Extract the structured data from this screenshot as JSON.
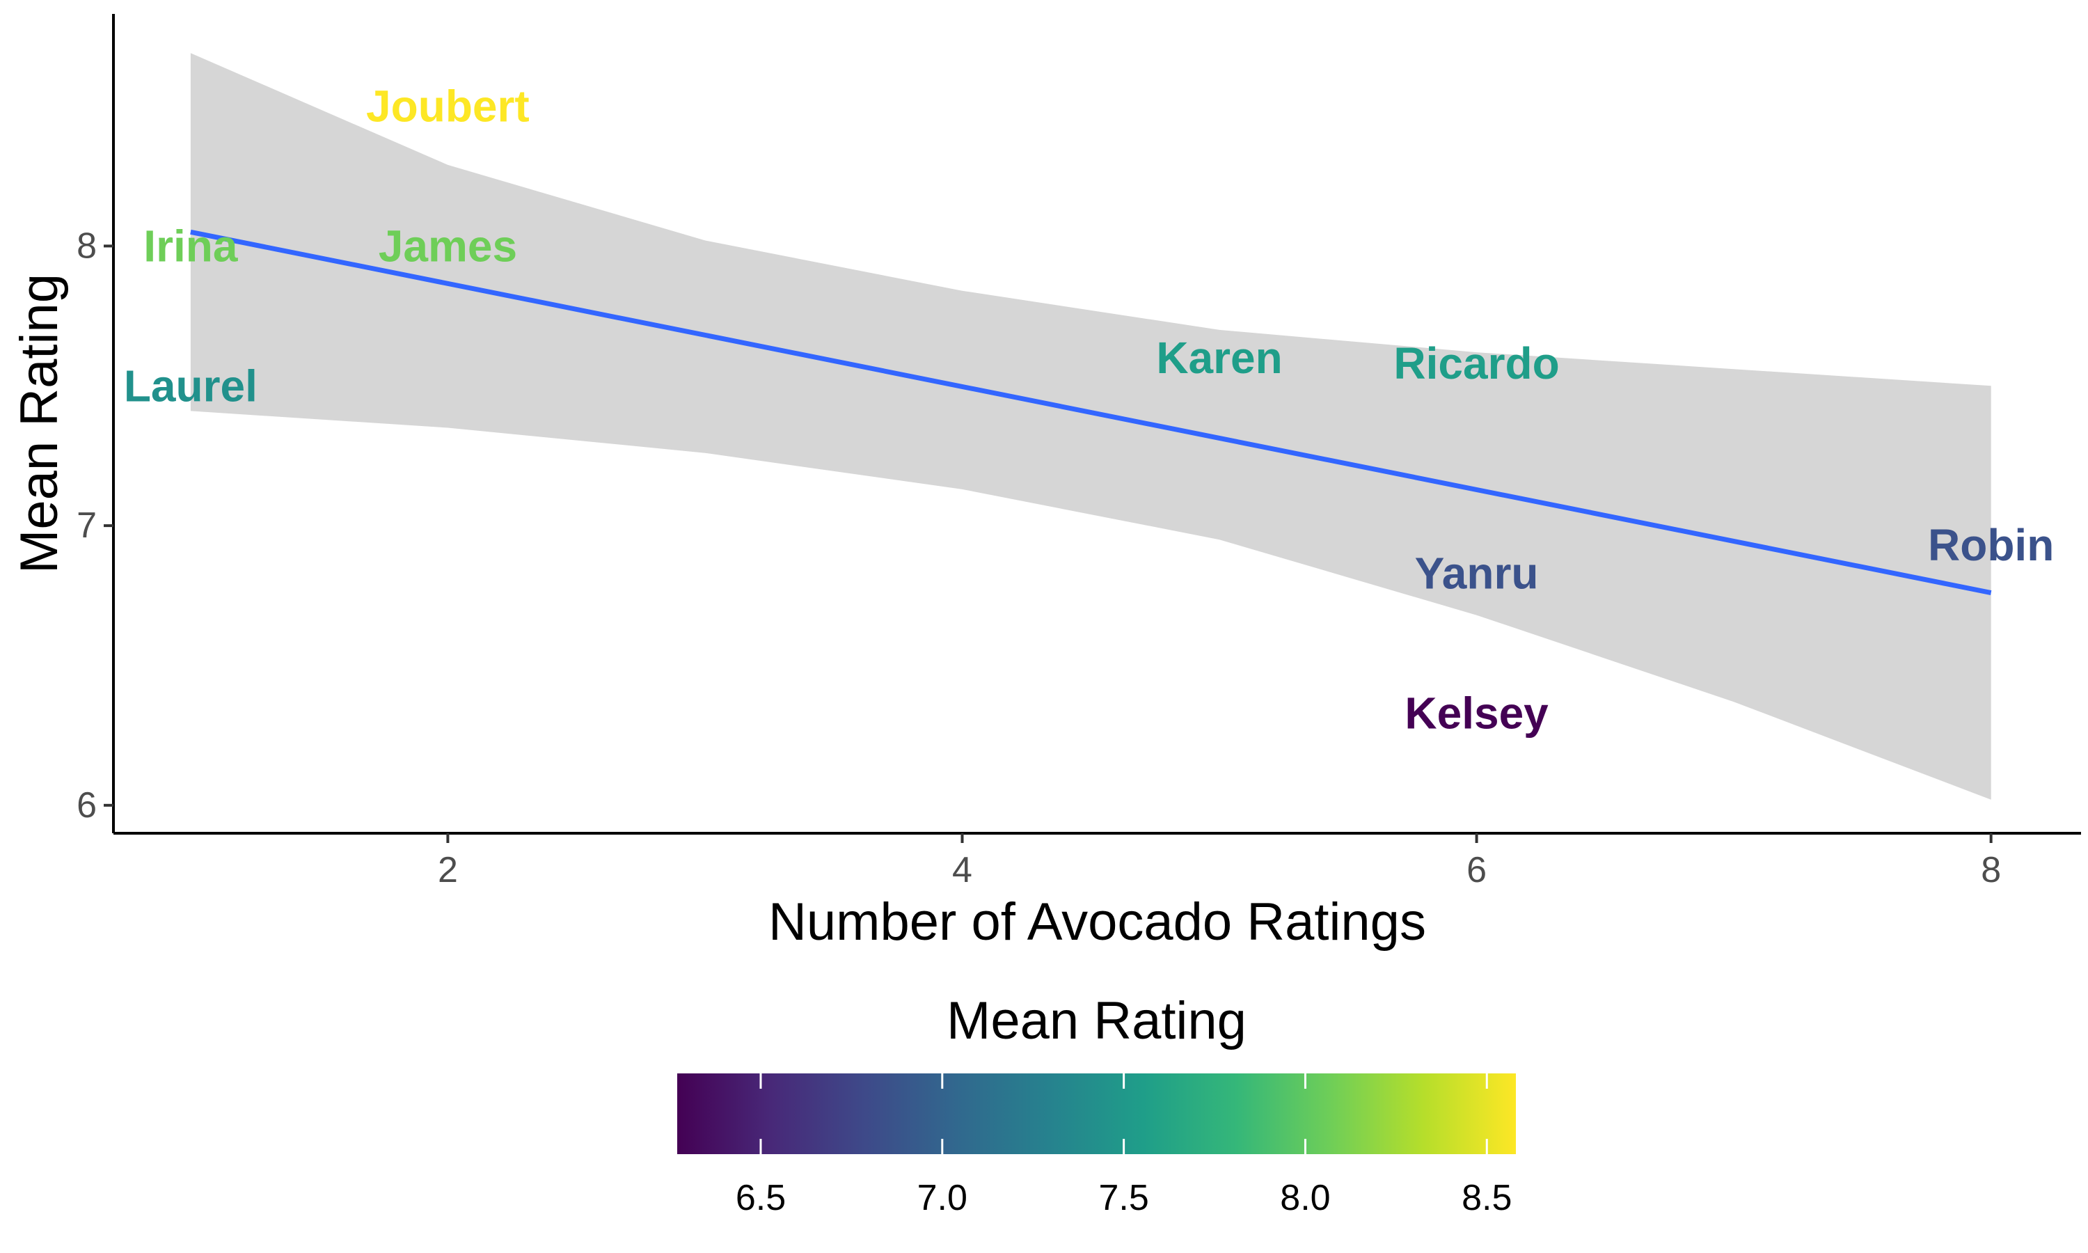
{
  "chart_data": {
    "type": "scatter",
    "title": "",
    "xlabel": "Number of Avocado Ratings",
    "ylabel": "Mean Rating",
    "xlim": [
      0.7,
      8.35
    ],
    "ylim": [
      5.9,
      8.83
    ],
    "x_ticks": [
      {
        "value": 2,
        "label": "2"
      },
      {
        "value": 4,
        "label": "4"
      },
      {
        "value": 6,
        "label": "6"
      },
      {
        "value": 8,
        "label": "8"
      }
    ],
    "y_ticks": [
      {
        "value": 6,
        "label": "6"
      },
      {
        "value": 7,
        "label": "7"
      },
      {
        "value": 8,
        "label": "8"
      }
    ],
    "points": [
      {
        "label": "Joubert",
        "x": 2,
        "y": 8.5,
        "color": "#fde725"
      },
      {
        "label": "Irina",
        "x": 1,
        "y": 8.0,
        "color": "#6ece58"
      },
      {
        "label": "James",
        "x": 2,
        "y": 8.0,
        "color": "#6ece58"
      },
      {
        "label": "Laurel",
        "x": 1,
        "y": 7.5,
        "color": "#21918c"
      },
      {
        "label": "Karen",
        "x": 5,
        "y": 7.6,
        "color": "#1f9e89"
      },
      {
        "label": "Ricardo",
        "x": 6,
        "y": 7.58,
        "color": "#1f9e89"
      },
      {
        "label": "Robin",
        "x": 8,
        "y": 6.93,
        "color": "#3b528b"
      },
      {
        "label": "Yanru",
        "x": 6,
        "y": 6.83,
        "color": "#3b528b"
      },
      {
        "label": "Kelsey",
        "x": 6,
        "y": 6.33,
        "color": "#440154"
      }
    ],
    "trend_line": {
      "method": "lm",
      "color": "#3366ff",
      "x": [
        1,
        8
      ],
      "y": [
        8.05,
        6.76
      ]
    },
    "confidence_band": {
      "fill": "#d6d6d6",
      "x": [
        1,
        2,
        3,
        4,
        5,
        6,
        7,
        8
      ],
      "upper": [
        8.69,
        8.29,
        8.02,
        7.84,
        7.7,
        7.62,
        7.56,
        7.5
      ],
      "lower": [
        7.41,
        7.35,
        7.26,
        7.13,
        6.95,
        6.68,
        6.37,
        6.02
      ]
    },
    "legend": {
      "title": "Mean Rating",
      "position": "bottom",
      "type": "colorbar",
      "palette": "viridis",
      "range": [
        6.27,
        8.58
      ],
      "ticks": [
        {
          "value": 6.5,
          "label": "6.5"
        },
        {
          "value": 7.0,
          "label": "7.0"
        },
        {
          "value": 7.5,
          "label": "7.5"
        },
        {
          "value": 8.0,
          "label": "8.0"
        },
        {
          "value": 8.5,
          "label": "8.5"
        }
      ],
      "colors": [
        "#440154",
        "#482878",
        "#3e4989",
        "#31688e",
        "#26828e",
        "#1f9e89",
        "#35b779",
        "#6ece58",
        "#b5de2b",
        "#fde725"
      ]
    },
    "grid": false,
    "background": "#ffffff"
  }
}
